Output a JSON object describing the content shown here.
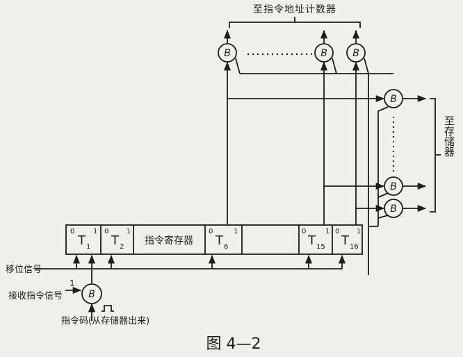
{
  "labels": {
    "top_destination": "至指令地址计数器",
    "right_destination": "至存储器",
    "register_name": "指令寄存器",
    "reset_signal": "移位信号",
    "receive_signal": "接收指令信号",
    "instruction_code": "指令码(从存储器出来)",
    "pulse_value": "1",
    "figure_caption": "图  4—2"
  },
  "cells": {
    "t1": {
      "sup": "0",
      "main": "T",
      "sub": "1",
      "sup2": "1"
    },
    "t2": {
      "sup": "0",
      "main": "T",
      "sub": "2",
      "sup2": "1"
    },
    "t6": {
      "sup": "0",
      "main": "T",
      "sub": "6",
      "sup2": "1"
    },
    "t15": {
      "sup": "0",
      "main": "T",
      "sub": "15",
      "sup2": "1"
    },
    "t16": {
      "sup": "0",
      "main": "T",
      "sub": "16",
      "sup2": "1"
    }
  },
  "gate_label": "B",
  "colors": {
    "ink": "#1d1d1d",
    "paper": "#f1f0ea"
  }
}
